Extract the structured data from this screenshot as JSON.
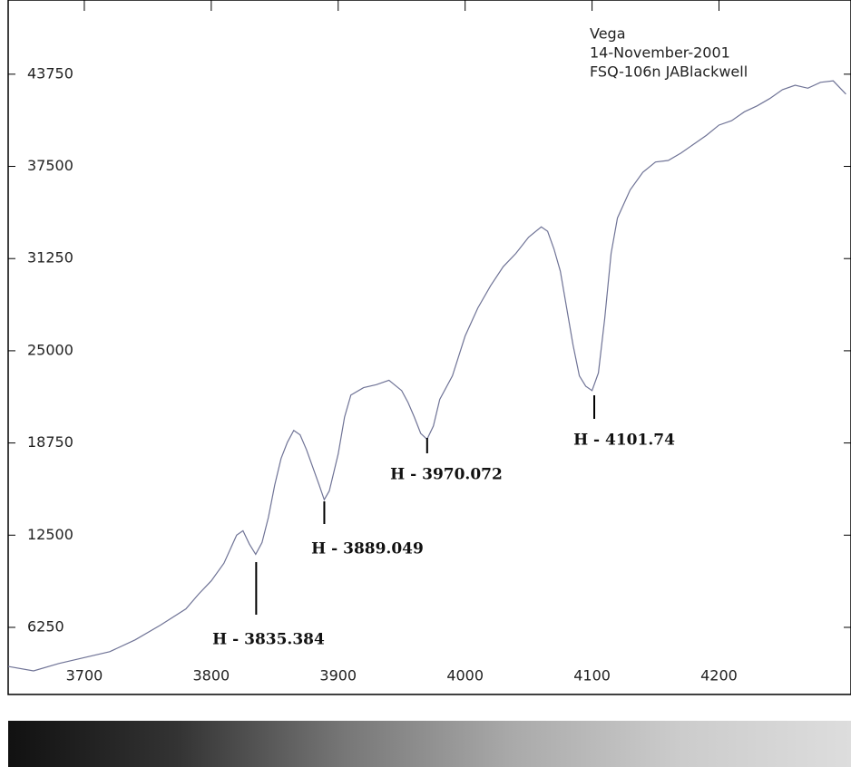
{
  "chart_data": {
    "type": "line",
    "text_lines": [
      "Vega",
      "14-November-2001",
      "FSQ-106n JABlackwell"
    ],
    "x": [
      3640,
      3660,
      3680,
      3700,
      3720,
      3740,
      3760,
      3780,
      3790,
      3800,
      3810,
      3820,
      3825,
      3830,
      3835,
      3840,
      3845,
      3850,
      3855,
      3860,
      3865,
      3870,
      3875,
      3880,
      3885,
      3889,
      3893,
      3900,
      3905,
      3910,
      3920,
      3930,
      3940,
      3950,
      3955,
      3960,
      3965,
      3970,
      3975,
      3980,
      3990,
      4000,
      4010,
      4020,
      4030,
      4040,
      4050,
      4060,
      4065,
      4070,
      4075,
      4080,
      4085,
      4090,
      4095,
      4100,
      4105,
      4110,
      4115,
      4120,
      4130,
      4140,
      4150,
      4160,
      4170,
      4180,
      4190,
      4200,
      4210,
      4220,
      4230,
      4240,
      4250,
      4260,
      4270,
      4280,
      4290,
      4300
    ],
    "series": [
      {
        "color": "#6f7396",
        "values": [
          3600,
          3300,
          3800,
          4200,
          4600,
          5400,
          6400,
          7500,
          8500,
          9400,
          10600,
          12500,
          12800,
          11900,
          11200,
          12000,
          13700,
          15900,
          17700,
          18800,
          19600,
          19300,
          18300,
          17100,
          15900,
          14900,
          15500,
          18000,
          20500,
          22000,
          22500,
          22700,
          23000,
          22300,
          21500,
          20500,
          19400,
          19000,
          19900,
          21700,
          23300,
          26000,
          27900,
          29400,
          30700,
          31600,
          32700,
          33400,
          33100,
          31900,
          30400,
          27900,
          25400,
          23300,
          22600,
          22300,
          23500,
          27200,
          31600,
          34000,
          35900,
          37100,
          37800,
          37900,
          38400,
          39000,
          39600,
          40300,
          40600,
          41200,
          41600,
          42100,
          42700,
          43000,
          42800,
          43200,
          43300,
          42400
        ]
      }
    ],
    "xlim": [
      3640,
      4304
    ],
    "ylim": [
      1700,
      48780
    ],
    "xticks": [
      3700,
      3800,
      3900,
      4000,
      4100,
      4200
    ],
    "yticks": [
      6250,
      12500,
      18750,
      25000,
      31250,
      37500,
      43750
    ],
    "annotations": [
      {
        "text": "H - 3835.384",
        "x": 3835.384
      },
      {
        "text": "H - 3889.049",
        "x": 3889.049
      },
      {
        "text": "H - 3970.072",
        "x": 3970.072
      },
      {
        "text": "H - 4101.74",
        "x": 4101.74
      }
    ]
  }
}
